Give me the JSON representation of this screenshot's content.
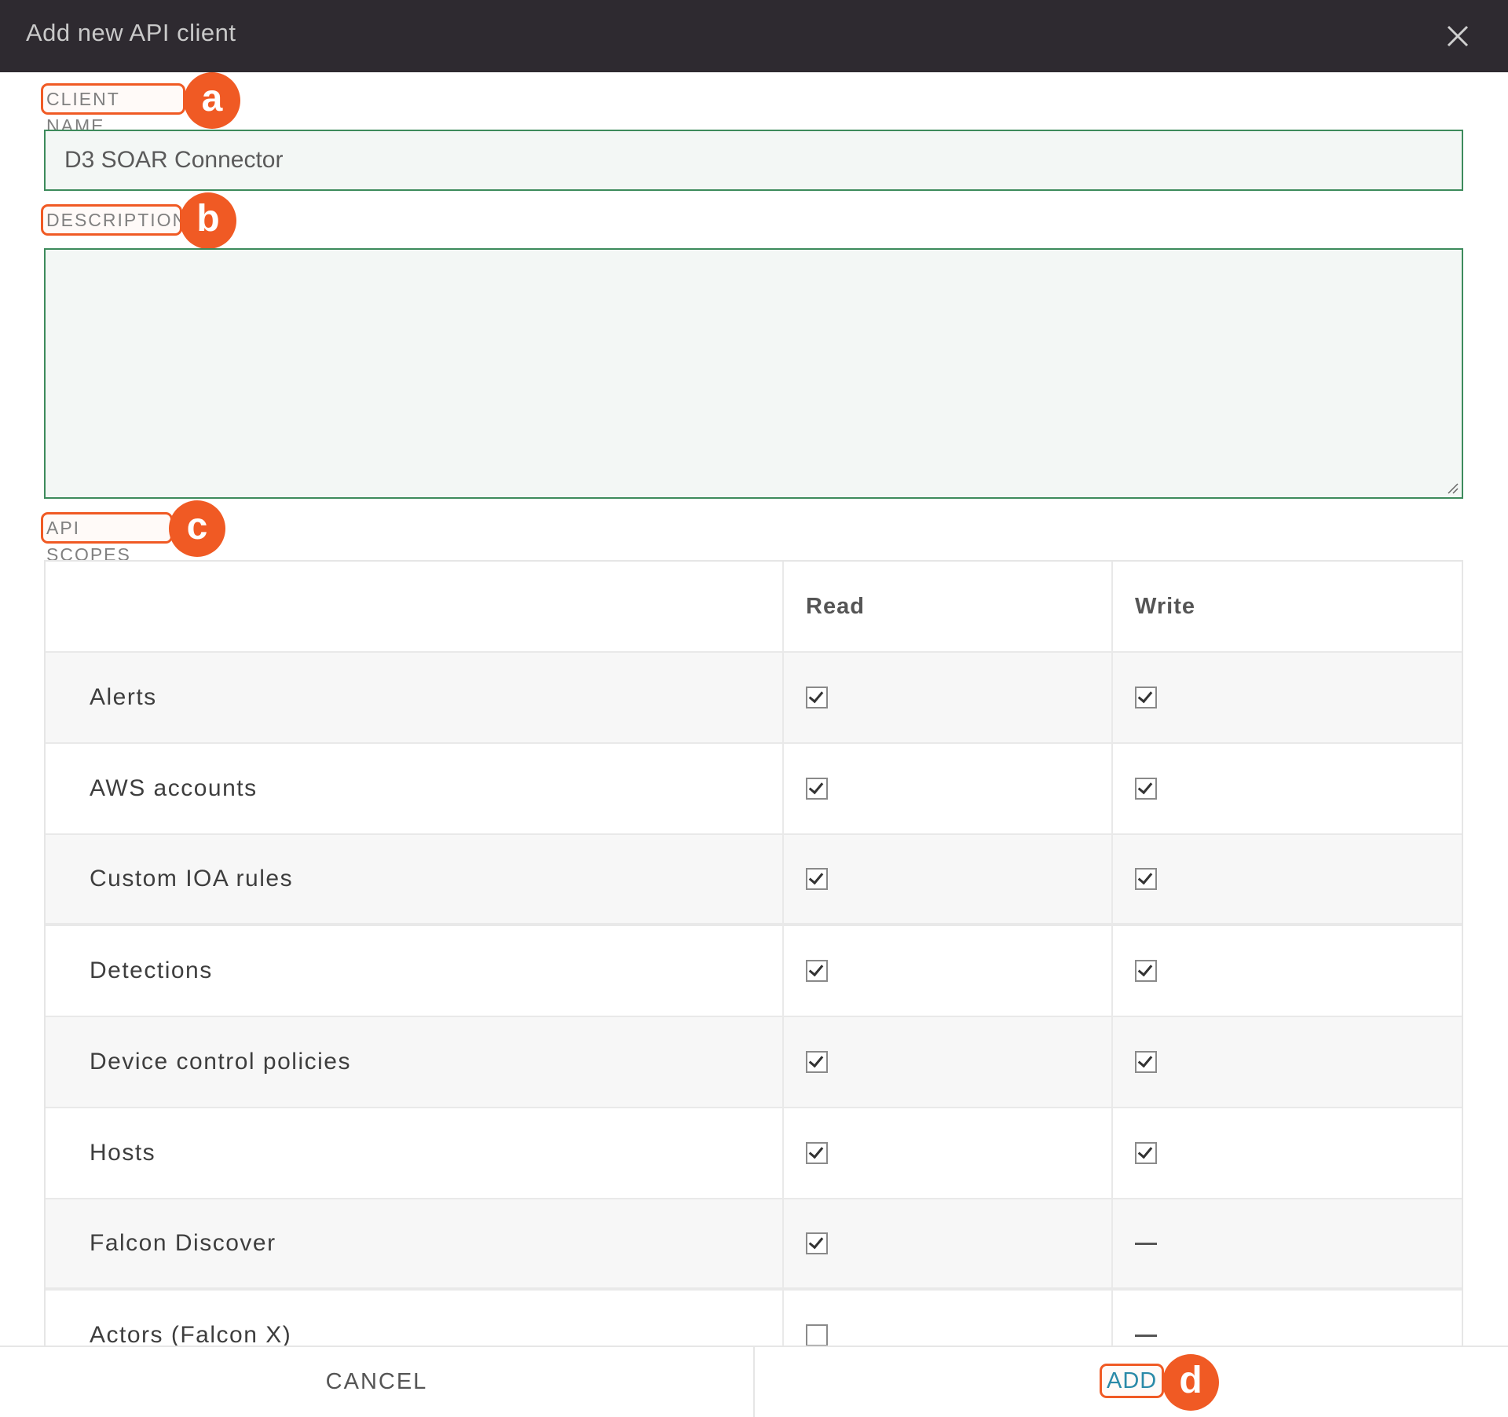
{
  "dialog": {
    "title": "Add new API client",
    "close_icon": "close-icon"
  },
  "form": {
    "client_name_label": "CLIENT NAME",
    "client_name_value": "D3 SOAR Connector",
    "description_label": "DESCRIPTION",
    "description_value": "",
    "api_scopes_label": "API SCOPES"
  },
  "annotations": {
    "a": "a",
    "b": "b",
    "c": "c",
    "d": "d",
    "color": "#f05a24"
  },
  "scopes": {
    "columns": [
      "",
      "Read",
      "Write"
    ],
    "rows": [
      {
        "name": "Alerts",
        "read": true,
        "write": true
      },
      {
        "name": "AWS accounts",
        "read": true,
        "write": true
      },
      {
        "name": "Custom IOA rules",
        "read": true,
        "write": true
      },
      {
        "name": "Detections",
        "read": true,
        "write": true
      },
      {
        "name": "Device control policies",
        "read": true,
        "write": true
      },
      {
        "name": "Hosts",
        "read": true,
        "write": true
      },
      {
        "name": "Falcon Discover",
        "read": true,
        "write": null
      },
      {
        "name": "Actors (Falcon X)",
        "read": false,
        "write": null
      }
    ]
  },
  "footer": {
    "cancel_label": "CANCEL",
    "add_label": "ADD"
  },
  "colors": {
    "header_bg": "#2e2a30",
    "input_border": "#3d8b5c",
    "add_text": "#2b8aa8"
  }
}
